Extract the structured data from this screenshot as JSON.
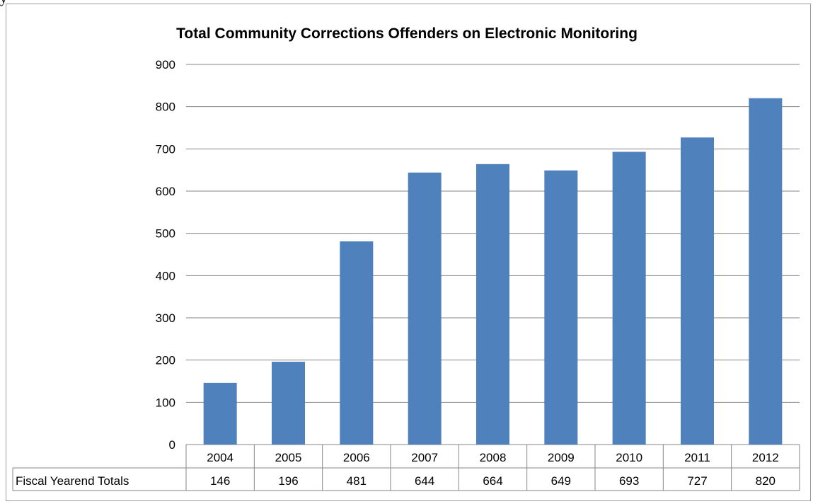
{
  "page": {
    "top_fragment": "y"
  },
  "chart_data": {
    "type": "bar",
    "title": "Total Community Corrections Offenders on Electronic Monitoring",
    "categories": [
      "2004",
      "2005",
      "2006",
      "2007",
      "2008",
      "2009",
      "2010",
      "2011",
      "2012"
    ],
    "series": [
      {
        "name": "Fiscal Yearend Totals",
        "values": [
          146,
          196,
          481,
          644,
          664,
          649,
          693,
          727,
          820
        ],
        "color": "#4f81bd"
      }
    ],
    "ylim": [
      0,
      900
    ],
    "yticks": [
      0,
      100,
      200,
      300,
      400,
      500,
      600,
      700,
      800,
      900
    ],
    "grid": true,
    "data_table": true,
    "xlabel": "",
    "ylabel": ""
  }
}
